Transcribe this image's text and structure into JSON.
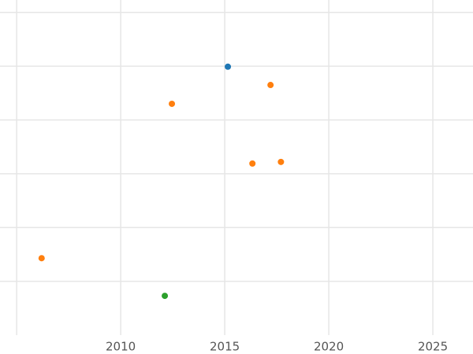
{
  "chart_data": {
    "type": "scatter",
    "series": [
      {
        "color": "#1f77b4",
        "x": [
          2015.15
        ],
        "values": [
          4.99
        ]
      },
      {
        "color": "#ff7f0e",
        "x": [
          2017.2,
          2012.46,
          2016.33,
          2017.7,
          2006.2
        ],
        "values": [
          4.65,
          4.3,
          3.19,
          3.22,
          1.43
        ]
      },
      {
        "color": "#2ca02c",
        "x": [
          2012.12
        ],
        "values": [
          0.73
        ]
      }
    ],
    "xlim": [
      2004.2,
      2026.93
    ],
    "xticks": [
      2010,
      2015,
      2020,
      2025
    ],
    "xgrid": [
      2005,
      2010,
      2015,
      2020,
      2025
    ],
    "ylim": [
      0,
      6.23
    ],
    "ygrid": [
      1,
      2,
      3,
      4,
      5,
      6
    ],
    "grid": true
  }
}
